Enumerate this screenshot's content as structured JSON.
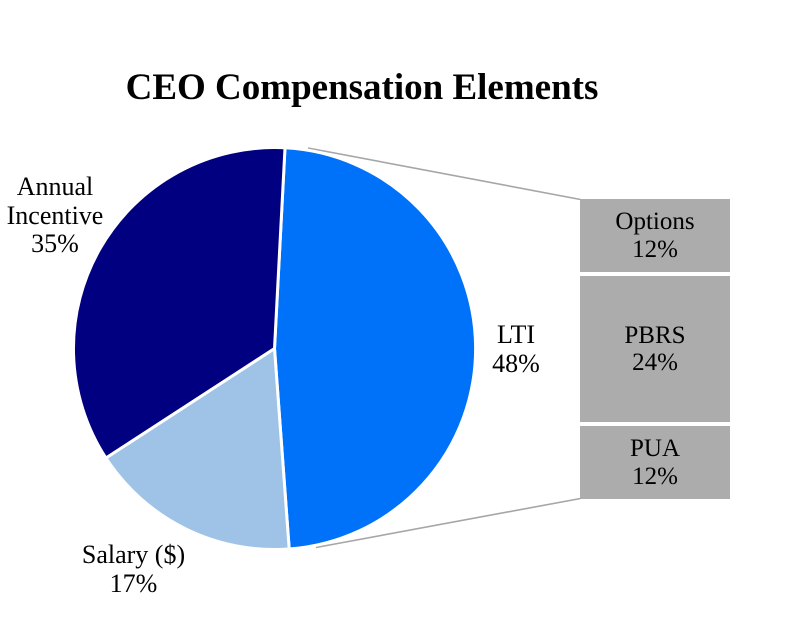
{
  "title": "CEO Compensation Elements",
  "chart_data": {
    "type": "pie",
    "subtype": "bar-of-pie",
    "title": "CEO Compensation Elements",
    "start_angle_deg": 3,
    "slice_border_color": "#ffffff",
    "slices": [
      {
        "label": "LTI",
        "value": 48,
        "color": "#0071F9",
        "label_text": "LTI\n48%"
      },
      {
        "label": "Salary ($)",
        "value": 17,
        "color": "#9FC3E7",
        "label_text": "Salary ($)\n17%"
      },
      {
        "label": "Annual Incentive",
        "value": 35,
        "color": "#000080",
        "label_text": "Annual\nIncentive\n35%"
      }
    ],
    "breakdown": {
      "of_slice": "LTI",
      "box_color": "#ACACAC",
      "connector_color": "#A6A6A6",
      "items": [
        {
          "label": "Options",
          "value": 12,
          "text": "Options\n12%"
        },
        {
          "label": "PBRS",
          "value": 24,
          "text": "PBRS\n24%"
        },
        {
          "label": "PUA",
          "value": 12,
          "text": "PUA\n12%"
        }
      ]
    },
    "legend": "none",
    "background": "#ffffff"
  }
}
